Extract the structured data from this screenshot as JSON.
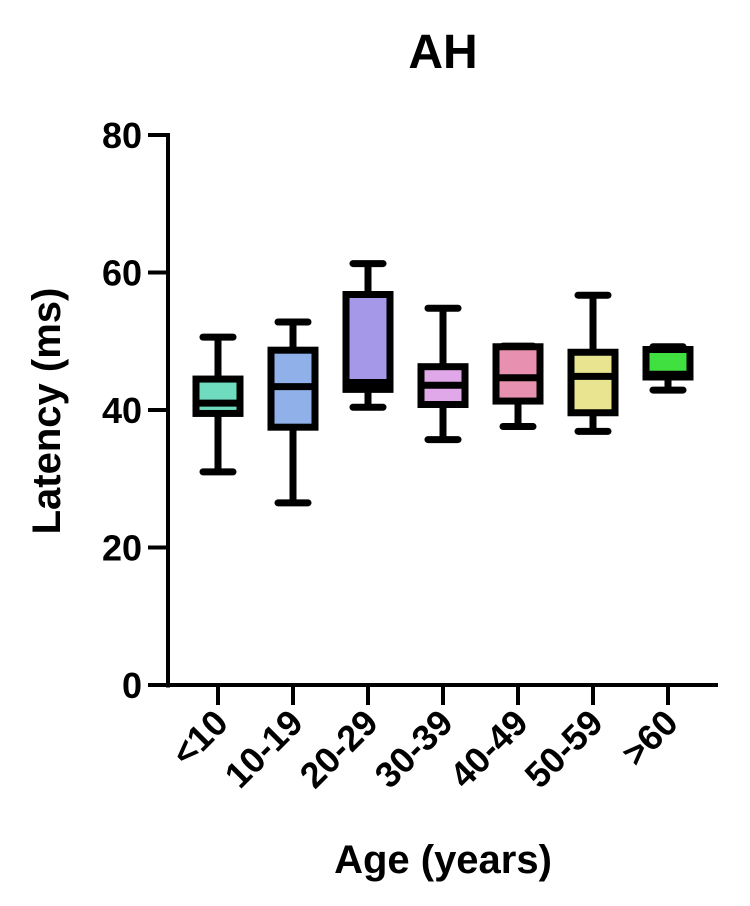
{
  "chart_data": {
    "type": "box",
    "title": "AH",
    "xlabel": "Age (years)",
    "ylabel": "Latency (ms)",
    "ylim": [
      0,
      80
    ],
    "yticks": [
      0,
      20,
      40,
      60,
      80
    ],
    "grid": false,
    "legend": null,
    "categories": [
      "<10",
      "10-19",
      "20-29",
      "30-39",
      "40-49",
      "50-59",
      ">60"
    ],
    "series": [
      {
        "name": "<10",
        "min": 31.0,
        "q1": 39.5,
        "median": 41.0,
        "q3": 44.5,
        "max": 50.6,
        "color": "#6fdcc0"
      },
      {
        "name": "10-19",
        "min": 26.5,
        "q1": 37.5,
        "median": 43.4,
        "q3": 48.7,
        "max": 52.8,
        "color": "#8fb0e8"
      },
      {
        "name": "20-29",
        "min": 40.4,
        "q1": 43.0,
        "median": 44.0,
        "q3": 56.8,
        "max": 61.3,
        "color": "#a598e8"
      },
      {
        "name": "30-39",
        "min": 35.7,
        "q1": 40.8,
        "median": 43.6,
        "q3": 46.3,
        "max": 54.8,
        "color": "#e0a8e8"
      },
      {
        "name": "40-49",
        "min": 37.6,
        "q1": 41.3,
        "median": 44.7,
        "q3": 49.2,
        "max": 49.3,
        "color": "#e890b0"
      },
      {
        "name": "50-59",
        "min": 36.9,
        "q1": 39.6,
        "median": 44.9,
        "q3": 48.4,
        "max": 56.7,
        "color": "#e8e490"
      },
      {
        "name": ">60",
        "min": 42.9,
        "q1": 44.8,
        "median": 45.2,
        "q3": 48.8,
        "max": 49.2,
        "color": "#40e040"
      }
    ]
  }
}
